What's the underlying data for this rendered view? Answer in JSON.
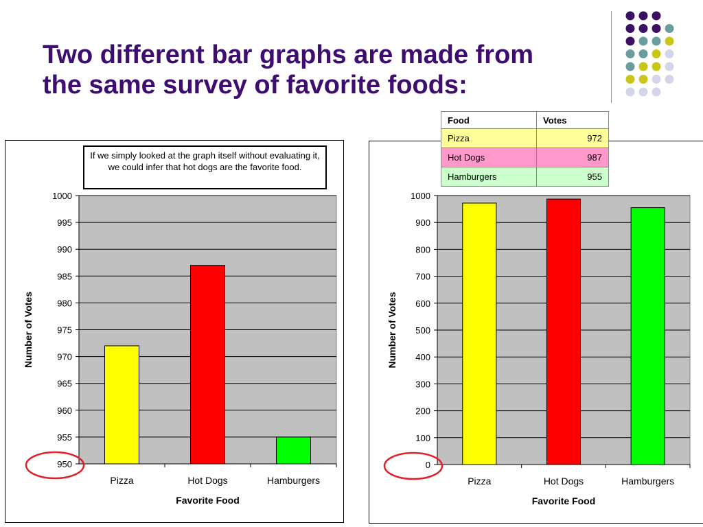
{
  "slide": {
    "title_line1": "Two different bar graphs are made from",
    "title_line2": "the same survey of favorite foods:"
  },
  "decoration": {
    "dot_colors": {
      "purple": "#3b1060",
      "teal": "#6a9e9e",
      "olive": "#c9c617",
      "lavender": "#d4d4ea"
    }
  },
  "table": {
    "headers": [
      "Food",
      "Votes"
    ],
    "rows": [
      {
        "food": "Pizza",
        "votes": "972",
        "color": "#ffff99"
      },
      {
        "food": "Hot Dogs",
        "votes": "987",
        "color": "#ff99cc"
      },
      {
        "food": "Hamburgers",
        "votes": "955",
        "color": "#ccffcc"
      }
    ]
  },
  "callout": {
    "text": "If we simply looked at the graph itself without evaluating it, we could infer that hot dogs are the favorite food."
  },
  "highlight_color": "#e0202a",
  "chart_data": [
    {
      "type": "bar",
      "categories": [
        "Pizza",
        "Hot Dogs",
        "Hamburgers"
      ],
      "values": [
        972,
        987,
        955
      ],
      "colors": [
        "#ffff00",
        "#ff0000",
        "#00ff00"
      ],
      "xlabel": "Favorite Food",
      "ylabel": "Number of Votes",
      "ylim": [
        950,
        1000
      ],
      "yticks": [
        "950",
        "955",
        "960",
        "965",
        "970",
        "975",
        "980",
        "985",
        "990",
        "995",
        "1000"
      ],
      "grid": true,
      "plot_background": "#c0c0c0"
    },
    {
      "type": "bar",
      "categories": [
        "Pizza",
        "Hot Dogs",
        "Hamburgers"
      ],
      "values": [
        972,
        987,
        955
      ],
      "colors": [
        "#ffff00",
        "#ff0000",
        "#00ff00"
      ],
      "xlabel": "Favorite Food",
      "ylabel": "Number of Votes",
      "ylim": [
        0,
        1000
      ],
      "yticks": [
        "0",
        "100",
        "200",
        "300",
        "400",
        "500",
        "600",
        "700",
        "800",
        "900",
        "1000"
      ],
      "grid": true,
      "plot_background": "#c0c0c0"
    }
  ]
}
